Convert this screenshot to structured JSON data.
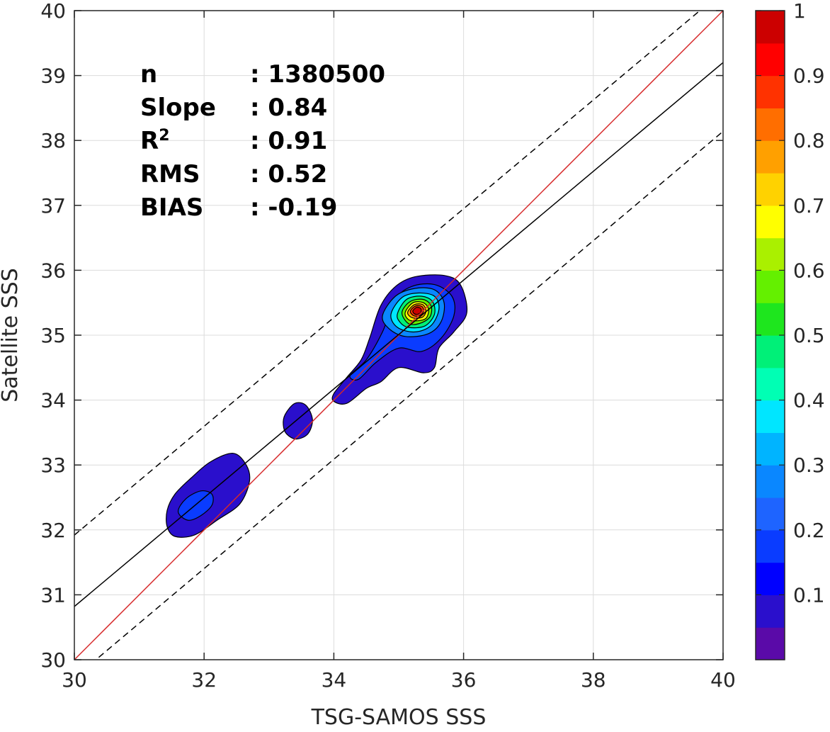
{
  "chart_data": {
    "type": "contour-density",
    "xlabel": "TSG-SAMOS SSS",
    "ylabel": "Satellite SSS",
    "xlim": [
      30,
      40
    ],
    "ylim": [
      30,
      40
    ],
    "x_ticks": [
      "30",
      "32",
      "34",
      "36",
      "38",
      "40"
    ],
    "y_ticks": [
      "30",
      "31",
      "32",
      "33",
      "34",
      "35",
      "36",
      "37",
      "38",
      "39",
      "40"
    ],
    "grid": true,
    "stats": [
      {
        "label": "n",
        "value": ": 1380500"
      },
      {
        "label": "Slope",
        "value": ": 0.84"
      },
      {
        "label": "R",
        "label_sup": "2",
        "value": ": 0.91"
      },
      {
        "label": "RMS",
        "value": ": 0.52"
      },
      {
        "label": "BIAS",
        "value": ": -0.19"
      }
    ],
    "lines": [
      {
        "kind": "one-to-one",
        "color": "#d62728",
        "style": "solid",
        "points": [
          [
            30,
            30
          ],
          [
            40,
            40
          ]
        ]
      },
      {
        "kind": "regression",
        "color": "#000000",
        "style": "solid",
        "points": [
          [
            30,
            30.82
          ],
          [
            40,
            39.2
          ]
        ]
      },
      {
        "kind": "regression-plus-offset",
        "color": "#000000",
        "style": "dashed",
        "points": [
          [
            30,
            31.92
          ],
          [
            40,
            40.3
          ]
        ]
      },
      {
        "kind": "regression-minus-offset",
        "color": "#000000",
        "style": "dashed",
        "points": [
          [
            30,
            29.72
          ],
          [
            40,
            38.14
          ]
        ]
      }
    ],
    "colorbar": {
      "ticks": [
        "0.1",
        "0.2",
        "0.3",
        "0.4",
        "0.5",
        "0.6",
        "0.7",
        "0.8",
        "0.9",
        "1"
      ],
      "tick_values": [
        0.1,
        0.2,
        0.3,
        0.4,
        0.5,
        0.6,
        0.7,
        0.8,
        0.9,
        1.0
      ],
      "levels": [
        0.0,
        0.05,
        0.1,
        0.15,
        0.2,
        0.25,
        0.3,
        0.35,
        0.4,
        0.45,
        0.5,
        0.55,
        0.6,
        0.65,
        0.7,
        0.75,
        0.8,
        0.85,
        0.9,
        0.95,
        1.0
      ],
      "colors": [
        "#ffffff",
        "#5a0aa8",
        "#2a0fcc",
        "#0000ff",
        "#0a3cff",
        "#1e64ff",
        "#0a87ff",
        "#00b4ff",
        "#00e6ff",
        "#00ffb4",
        "#00f078",
        "#1ee61e",
        "#64f000",
        "#aaf000",
        "#ffff00",
        "#ffd200",
        "#ffa000",
        "#ff6e00",
        "#ff3200",
        "#ff0000",
        "#cc0000",
        "#8c0000"
      ]
    },
    "contours": [
      {
        "level": 0.05,
        "color_index": 2,
        "polygon": [
          [
            31.55,
            32.55
          ],
          [
            31.8,
            32.8
          ],
          [
            32.1,
            33.05
          ],
          [
            32.45,
            33.18
          ],
          [
            32.65,
            33.0
          ],
          [
            32.7,
            32.75
          ],
          [
            32.55,
            32.4
          ],
          [
            32.2,
            32.15
          ],
          [
            31.85,
            31.92
          ],
          [
            31.55,
            31.9
          ],
          [
            31.43,
            32.05
          ],
          [
            31.43,
            32.3
          ]
        ]
      },
      {
        "level": 0.15,
        "color_index": 4,
        "polygon": [
          [
            31.6,
            32.28
          ],
          [
            31.72,
            32.48
          ],
          [
            31.95,
            32.6
          ],
          [
            32.12,
            32.55
          ],
          [
            32.12,
            32.38
          ],
          [
            31.95,
            32.22
          ],
          [
            31.75,
            32.15
          ]
        ]
      },
      {
        "level": 0.05,
        "color_index": 2,
        "polygon": [
          [
            33.25,
            33.78
          ],
          [
            33.4,
            33.95
          ],
          [
            33.57,
            33.92
          ],
          [
            33.67,
            33.7
          ],
          [
            33.6,
            33.48
          ],
          [
            33.42,
            33.4
          ],
          [
            33.27,
            33.48
          ],
          [
            33.22,
            33.62
          ]
        ]
      },
      {
        "level": 0.05,
        "color_index": 2,
        "polygon": [
          [
            34.0,
            34.1
          ],
          [
            34.2,
            34.35
          ],
          [
            34.42,
            34.62
          ],
          [
            34.55,
            34.95
          ],
          [
            34.72,
            35.45
          ],
          [
            34.95,
            35.75
          ],
          [
            35.25,
            35.9
          ],
          [
            35.7,
            35.92
          ],
          [
            35.95,
            35.78
          ],
          [
            36.05,
            35.35
          ],
          [
            35.85,
            35.05
          ],
          [
            35.62,
            34.8
          ],
          [
            35.55,
            34.5
          ],
          [
            35.38,
            34.42
          ],
          [
            35.0,
            34.5
          ],
          [
            34.72,
            34.28
          ],
          [
            34.5,
            34.18
          ],
          [
            34.2,
            33.95
          ],
          [
            34.0,
            33.98
          ]
        ]
      },
      {
        "level": 0.15,
        "color_index": 4,
        "polygon": [
          [
            34.25,
            34.38
          ],
          [
            34.5,
            34.62
          ],
          [
            34.75,
            35.05
          ],
          [
            34.95,
            35.55
          ],
          [
            35.2,
            35.75
          ],
          [
            35.55,
            35.78
          ],
          [
            35.82,
            35.6
          ],
          [
            35.85,
            35.3
          ],
          [
            35.65,
            34.95
          ],
          [
            35.35,
            34.75
          ],
          [
            35.0,
            34.8
          ],
          [
            34.65,
            34.58
          ],
          [
            34.38,
            34.32
          ]
        ]
      },
      {
        "level": 0.25,
        "color_index": 6,
        "polygon": [
          [
            34.75,
            35.3
          ],
          [
            34.95,
            35.6
          ],
          [
            35.25,
            35.72
          ],
          [
            35.55,
            35.7
          ],
          [
            35.7,
            35.5
          ],
          [
            35.65,
            35.2
          ],
          [
            35.45,
            35.02
          ],
          [
            35.1,
            34.98
          ],
          [
            34.85,
            35.1
          ]
        ]
      },
      {
        "level": 0.35,
        "color_index": 8,
        "polygon": [
          [
            34.88,
            35.32
          ],
          [
            35.05,
            35.58
          ],
          [
            35.3,
            35.65
          ],
          [
            35.55,
            35.6
          ],
          [
            35.62,
            35.4
          ],
          [
            35.5,
            35.15
          ],
          [
            35.25,
            35.05
          ],
          [
            34.98,
            35.12
          ]
        ]
      },
      {
        "level": 0.45,
        "color_index": 10,
        "polygon": [
          [
            34.98,
            35.33
          ],
          [
            35.12,
            35.55
          ],
          [
            35.35,
            35.6
          ],
          [
            35.52,
            35.52
          ],
          [
            35.55,
            35.32
          ],
          [
            35.4,
            35.14
          ],
          [
            35.15,
            35.12
          ],
          [
            35.02,
            35.2
          ]
        ]
      },
      {
        "level": 0.55,
        "color_index": 12,
        "polygon": [
          [
            35.05,
            35.35
          ],
          [
            35.18,
            35.52
          ],
          [
            35.38,
            35.55
          ],
          [
            35.5,
            35.45
          ],
          [
            35.48,
            35.28
          ],
          [
            35.32,
            35.18
          ],
          [
            35.15,
            35.18
          ]
        ]
      },
      {
        "level": 0.65,
        "color_index": 14,
        "polygon": [
          [
            35.1,
            35.35
          ],
          [
            35.22,
            35.5
          ],
          [
            35.38,
            35.5
          ],
          [
            35.46,
            35.4
          ],
          [
            35.42,
            35.26
          ],
          [
            35.28,
            35.22
          ],
          [
            35.15,
            35.24
          ]
        ]
      },
      {
        "level": 0.75,
        "color_index": 16,
        "polygon": [
          [
            35.14,
            35.36
          ],
          [
            35.24,
            35.47
          ],
          [
            35.37,
            35.47
          ],
          [
            35.42,
            35.37
          ],
          [
            35.37,
            35.28
          ],
          [
            35.26,
            35.26
          ],
          [
            35.17,
            35.29
          ]
        ]
      },
      {
        "level": 0.85,
        "color_index": 18,
        "polygon": [
          [
            35.18,
            35.37
          ],
          [
            35.26,
            35.45
          ],
          [
            35.36,
            35.44
          ],
          [
            35.38,
            35.36
          ],
          [
            35.32,
            35.3
          ],
          [
            35.23,
            35.3
          ]
        ]
      },
      {
        "level": 0.95,
        "color_index": 20,
        "polygon": [
          [
            35.22,
            35.38
          ],
          [
            35.28,
            35.43
          ],
          [
            35.34,
            35.41
          ],
          [
            35.34,
            35.35
          ],
          [
            35.28,
            35.32
          ],
          [
            35.23,
            35.34
          ]
        ]
      }
    ]
  }
}
